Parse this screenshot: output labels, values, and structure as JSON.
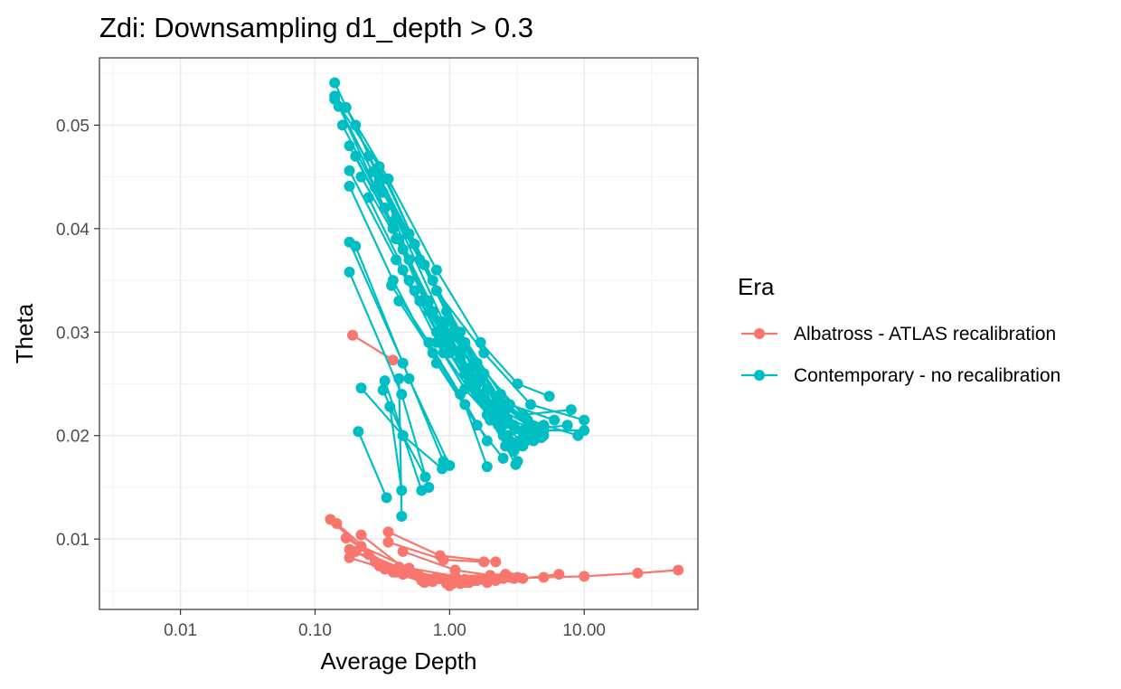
{
  "chart_data": {
    "type": "line",
    "title": "Zdi: Downsampling d1_depth > 0.3",
    "xlabel": "Average Depth",
    "ylabel": "Theta",
    "x_scale": "log10",
    "xlim": [
      0.0025,
      70
    ],
    "ylim": [
      0.0032,
      0.0565
    ],
    "x_ticks": [
      0.01,
      0.1,
      1,
      10
    ],
    "x_tick_labels": [
      "0.01",
      "0.10",
      "1.00",
      "10.00"
    ],
    "y_ticks": [
      0.01,
      0.02,
      0.03,
      0.04,
      0.05
    ],
    "y_tick_labels": [
      "0.01",
      "0.02",
      "0.03",
      "0.04",
      "0.05"
    ],
    "grid": true,
    "legend": {
      "title": "Era",
      "position": "right"
    },
    "series": [
      {
        "name": "Albatross - ATLAS recalibration",
        "color": "#F8766D",
        "lines": [
          [
            [
              0.19,
              0.0297
            ],
            [
              0.38,
              0.0273
            ]
          ],
          [
            [
              0.13,
              0.0119
            ],
            [
              0.3,
              0.0075
            ],
            [
              0.8,
              0.0063
            ],
            [
              2.5,
              0.0062
            ],
            [
              10,
              0.0064
            ],
            [
              25,
              0.0067
            ],
            [
              50,
              0.007
            ]
          ],
          [
            [
              0.145,
              0.0115
            ],
            [
              0.35,
              0.0072
            ],
            [
              1.0,
              0.0061
            ],
            [
              3.5,
              0.0062
            ],
            [
              6.5,
              0.0066
            ]
          ],
          [
            [
              0.17,
              0.0101
            ],
            [
              0.4,
              0.007
            ],
            [
              1.2,
              0.006
            ],
            [
              3.0,
              0.0062
            ],
            [
              5.0,
              0.0063
            ]
          ],
          [
            [
              0.18,
              0.009
            ],
            [
              0.45,
              0.0066
            ],
            [
              1.5,
              0.006
            ],
            [
              2.5,
              0.0063
            ]
          ],
          [
            [
              0.22,
              0.0104
            ],
            [
              0.5,
              0.0068
            ],
            [
              1.3,
              0.0061
            ],
            [
              2.8,
              0.0063
            ]
          ],
          [
            [
              0.35,
              0.0107
            ],
            [
              0.85,
              0.0084
            ],
            [
              2.2,
              0.0078
            ]
          ],
          [
            [
              0.35,
              0.0097
            ],
            [
              0.9,
              0.008
            ],
            [
              1.8,
              0.0078
            ]
          ],
          [
            [
              0.45,
              0.0088
            ],
            [
              1.1,
              0.007
            ],
            [
              2.0,
              0.0065
            ]
          ],
          [
            [
              0.18,
              0.0082
            ],
            [
              0.4,
              0.0068
            ],
            [
              0.9,
              0.0062
            ],
            [
              1.9,
              0.0062
            ]
          ],
          [
            [
              0.22,
              0.0093
            ],
            [
              0.5,
              0.0072
            ],
            [
              1.1,
              0.0064
            ],
            [
              2.6,
              0.0066
            ]
          ],
          [
            [
              0.25,
              0.0085
            ],
            [
              0.55,
              0.0066
            ],
            [
              1.0,
              0.0058
            ],
            [
              1.6,
              0.006
            ]
          ],
          [
            [
              0.28,
              0.0078
            ],
            [
              0.6,
              0.0064
            ],
            [
              1.0,
              0.0055
            ],
            [
              1.9,
              0.0058
            ]
          ],
          [
            [
              0.3,
              0.0074
            ],
            [
              0.62,
              0.006
            ],
            [
              0.95,
              0.0057
            ],
            [
              1.4,
              0.0058
            ]
          ],
          [
            [
              0.2,
              0.0088
            ],
            [
              0.4,
              0.007
            ],
            [
              0.75,
              0.0059
            ],
            [
              1.2,
              0.0057
            ]
          ],
          [
            [
              0.33,
              0.0071
            ],
            [
              0.7,
              0.0061
            ],
            [
              1.3,
              0.0058
            ],
            [
              2.2,
              0.006
            ]
          ],
          [
            [
              0.38,
              0.0068
            ],
            [
              0.65,
              0.0058
            ],
            [
              1.05,
              0.0057
            ]
          ],
          [
            [
              0.42,
              0.0073
            ],
            [
              0.8,
              0.0063
            ],
            [
              1.7,
              0.0061
            ],
            [
              3.2,
              0.0063
            ]
          ]
        ]
      },
      {
        "name": "Contemporary - no recalibration",
        "color": "#00BFC4",
        "lines": [
          [
            [
              0.14,
              0.0541
            ],
            [
              0.3,
              0.045
            ],
            [
              0.7,
              0.032
            ],
            [
              1.5,
              0.025
            ],
            [
              3.0,
              0.021
            ],
            [
              5.0,
              0.02
            ]
          ],
          [
            [
              0.14,
              0.0528
            ],
            [
              0.28,
              0.044
            ],
            [
              0.65,
              0.033
            ],
            [
              1.4,
              0.026
            ],
            [
              2.8,
              0.023
            ],
            [
              6.0,
              0.0215
            ]
          ],
          [
            [
              0.14,
              0.0525
            ],
            [
              0.3,
              0.046
            ],
            [
              0.75,
              0.035
            ],
            [
              1.6,
              0.027
            ],
            [
              3.5,
              0.022
            ],
            [
              8.0,
              0.0225
            ]
          ],
          [
            [
              0.15,
              0.0518
            ],
            [
              0.32,
              0.0435
            ],
            [
              0.8,
              0.034
            ],
            [
              1.8,
              0.028
            ],
            [
              4.0,
              0.023
            ],
            [
              10.0,
              0.0215
            ]
          ],
          [
            [
              0.17,
              0.0517
            ],
            [
              0.35,
              0.0448
            ],
            [
              0.8,
              0.036
            ],
            [
              1.7,
              0.029
            ],
            [
              3.2,
              0.025
            ],
            [
              5.5,
              0.0238
            ]
          ],
          [
            [
              0.16,
              0.05
            ],
            [
              0.33,
              0.042
            ],
            [
              0.7,
              0.033
            ],
            [
              1.4,
              0.0265
            ],
            [
              2.6,
              0.0225
            ],
            [
              5.0,
              0.021
            ]
          ],
          [
            [
              0.2,
              0.05
            ],
            [
              0.4,
              0.041
            ],
            [
              0.9,
              0.031
            ],
            [
              1.9,
              0.0245
            ],
            [
              3.8,
              0.0215
            ],
            [
              9.0,
              0.02
            ]
          ],
          [
            [
              0.18,
              0.048
            ],
            [
              0.38,
              0.04
            ],
            [
              0.85,
              0.03
            ],
            [
              1.8,
              0.0235
            ],
            [
              3.5,
              0.0205
            ],
            [
              7.5,
              0.021
            ]
          ],
          [
            [
              0.2,
              0.047
            ],
            [
              0.42,
              0.039
            ],
            [
              0.95,
              0.0295
            ],
            [
              2.0,
              0.023
            ],
            [
              3.3,
              0.0195
            ]
          ],
          [
            [
              0.25,
              0.047
            ],
            [
              0.5,
              0.0395
            ],
            [
              1.1,
              0.03
            ],
            [
              2.3,
              0.0235
            ],
            [
              4.5,
              0.0205
            ],
            [
              10.0,
              0.0205
            ]
          ],
          [
            [
              0.18,
              0.0456
            ],
            [
              0.4,
              0.037
            ],
            [
              0.9,
              0.028
            ],
            [
              1.9,
              0.022
            ],
            [
              3.2,
              0.0175
            ]
          ],
          [
            [
              0.22,
              0.045
            ],
            [
              0.45,
              0.038
            ],
            [
              1.0,
              0.029
            ],
            [
              2.1,
              0.0225
            ],
            [
              4.2,
              0.0195
            ]
          ],
          [
            [
              0.27,
              0.0455
            ],
            [
              0.55,
              0.0385
            ],
            [
              1.2,
              0.03
            ],
            [
              2.4,
              0.024
            ],
            [
              5.0,
              0.0205
            ]
          ],
          [
            [
              0.3,
              0.0447
            ],
            [
              0.6,
              0.037
            ],
            [
              1.3,
              0.029
            ],
            [
              2.5,
              0.023
            ],
            [
              4.8,
              0.0198
            ]
          ],
          [
            [
              0.34,
              0.0448
            ],
            [
              0.65,
              0.0365
            ],
            [
              1.25,
              0.0285
            ],
            [
              2.2,
              0.0225
            ],
            [
              3.8,
              0.02
            ]
          ],
          [
            [
              0.18,
              0.0441
            ],
            [
              0.38,
              0.035
            ],
            [
              0.8,
              0.027
            ],
            [
              1.6,
              0.021
            ],
            [
              2.5,
              0.0178
            ]
          ],
          [
            [
              0.25,
              0.043
            ],
            [
              0.5,
              0.035
            ],
            [
              1.0,
              0.028
            ],
            [
              2.0,
              0.0215
            ],
            [
              3.0,
              0.0185
            ]
          ],
          [
            [
              0.4,
              0.039
            ],
            [
              0.75,
              0.032
            ],
            [
              1.3,
              0.026
            ],
            [
              2.3,
              0.021
            ],
            [
              3.5,
              0.019
            ]
          ],
          [
            [
              0.38,
              0.04
            ],
            [
              0.7,
              0.033
            ],
            [
              1.2,
              0.0275
            ],
            [
              1.9,
              0.023
            ],
            [
              2.8,
              0.0195
            ]
          ],
          [
            [
              0.45,
              0.036
            ],
            [
              0.8,
              0.03
            ],
            [
              1.4,
              0.025
            ],
            [
              2.5,
              0.02
            ],
            [
              4.0,
              0.021
            ]
          ],
          [
            [
              0.5,
              0.037
            ],
            [
              0.85,
              0.031
            ],
            [
              1.5,
              0.0255
            ],
            [
              2.7,
              0.02
            ],
            [
              3.6,
              0.0205
            ]
          ],
          [
            [
              0.55,
              0.034
            ],
            [
              0.9,
              0.029
            ],
            [
              1.6,
              0.024
            ],
            [
              2.6,
              0.019
            ],
            [
              3.1,
              0.0172
            ]
          ],
          [
            [
              0.37,
              0.0345
            ],
            [
              0.7,
              0.029
            ],
            [
              1.2,
              0.024
            ],
            [
              1.9,
              0.0195
            ]
          ],
          [
            [
              0.42,
              0.033
            ],
            [
              0.75,
              0.028
            ],
            [
              1.3,
              0.023
            ],
            [
              1.9,
              0.017
            ]
          ],
          [
            [
              0.6,
              0.033
            ],
            [
              1.0,
              0.029
            ],
            [
              1.6,
              0.025
            ],
            [
              2.5,
              0.021
            ],
            [
              4.0,
              0.02
            ]
          ],
          [
            [
              1.05,
              0.03
            ],
            [
              1.7,
              0.0255
            ],
            [
              2.6,
              0.0215
            ],
            [
              4.2,
              0.02
            ]
          ],
          [
            [
              0.95,
              0.032
            ],
            [
              1.5,
              0.027
            ],
            [
              2.4,
              0.0225
            ],
            [
              3.9,
              0.021
            ]
          ],
          [
            [
              1.0,
              0.031
            ],
            [
              1.8,
              0.026
            ],
            [
              2.7,
              0.0215
            ],
            [
              5.0,
              0.0205
            ]
          ],
          [
            [
              0.9,
              0.03
            ],
            [
              1.4,
              0.0255
            ],
            [
              2.3,
              0.022
            ],
            [
              3.7,
              0.0195
            ]
          ],
          [
            [
              0.8,
              0.029
            ],
            [
              1.3,
              0.0245
            ],
            [
              2.1,
              0.0215
            ],
            [
              3.2,
              0.019
            ]
          ],
          [
            [
              0.18,
              0.0387
            ],
            [
              0.45,
              0.027
            ],
            [
              0.9,
              0.0175
            ]
          ],
          [
            [
              0.2,
              0.0383
            ],
            [
              0.5,
              0.0255
            ],
            [
              1.0,
              0.0171
            ]
          ],
          [
            [
              0.18,
              0.0358
            ],
            [
              0.44,
              0.024
            ],
            [
              0.7,
              0.015
            ]
          ],
          [
            [
              0.33,
              0.0253
            ],
            [
              0.62,
              0.0147
            ]
          ],
          [
            [
              0.22,
              0.0246
            ],
            [
              0.45,
              0.02
            ],
            [
              0.88,
              0.0168
            ]
          ],
          [
            [
              0.32,
              0.0244
            ],
            [
              0.45,
              0.02
            ],
            [
              0.66,
              0.016
            ]
          ],
          [
            [
              0.36,
              0.0228
            ],
            [
              0.44,
              0.0147
            ]
          ],
          [
            [
              0.21,
              0.0204
            ],
            [
              0.34,
              0.014
            ]
          ],
          [
            [
              0.42,
              0.0255
            ],
            [
              0.44,
              0.0122
            ]
          ]
        ]
      }
    ]
  }
}
